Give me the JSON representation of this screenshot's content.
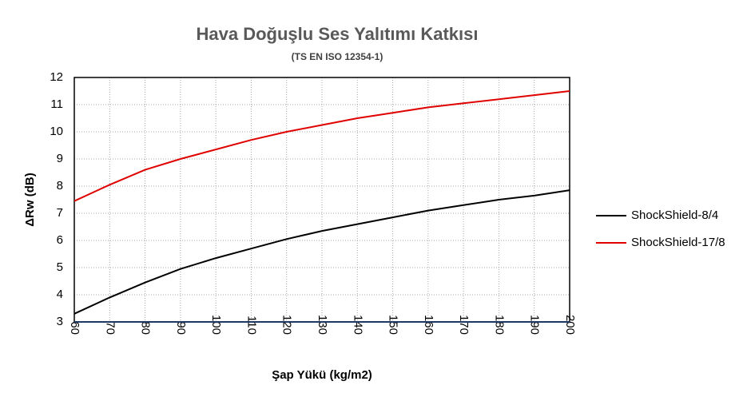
{
  "chart_data": {
    "type": "line",
    "title": "Hava Doğuşlu Ses Yalıtımı Katkısı",
    "subtitle": "(TS EN ISO 12354-1)",
    "x_label": "Şap Yükü (kg/m2)",
    "y_label": "ΔRw (dB)",
    "x": [
      60,
      70,
      80,
      90,
      100,
      110,
      120,
      130,
      140,
      150,
      160,
      170,
      180,
      190,
      200
    ],
    "series": [
      {
        "name": "ShockShield-8/4",
        "color": "#000000",
        "values": [
          3.3,
          3.9,
          4.45,
          4.95,
          5.35,
          5.7,
          6.05,
          6.35,
          6.6,
          6.85,
          7.1,
          7.3,
          7.5,
          7.65,
          7.85
        ]
      },
      {
        "name": "ShockShield-17/8",
        "color": "#e00000",
        "values": [
          7.45,
          8.05,
          8.6,
          9.0,
          9.35,
          9.7,
          10.0,
          10.25,
          10.5,
          10.7,
          10.9,
          11.05,
          11.2,
          11.35,
          11.5
        ]
      }
    ],
    "xlim": [
      60,
      200
    ],
    "xticks": [
      60,
      70,
      80,
      90,
      100,
      110,
      120,
      130,
      140,
      150,
      160,
      170,
      180,
      190,
      200
    ],
    "ylim": [
      3,
      12
    ],
    "yticks": [
      3,
      4,
      5,
      6,
      7,
      8,
      9,
      10,
      11,
      12
    ],
    "grid": true,
    "legend": "right"
  }
}
